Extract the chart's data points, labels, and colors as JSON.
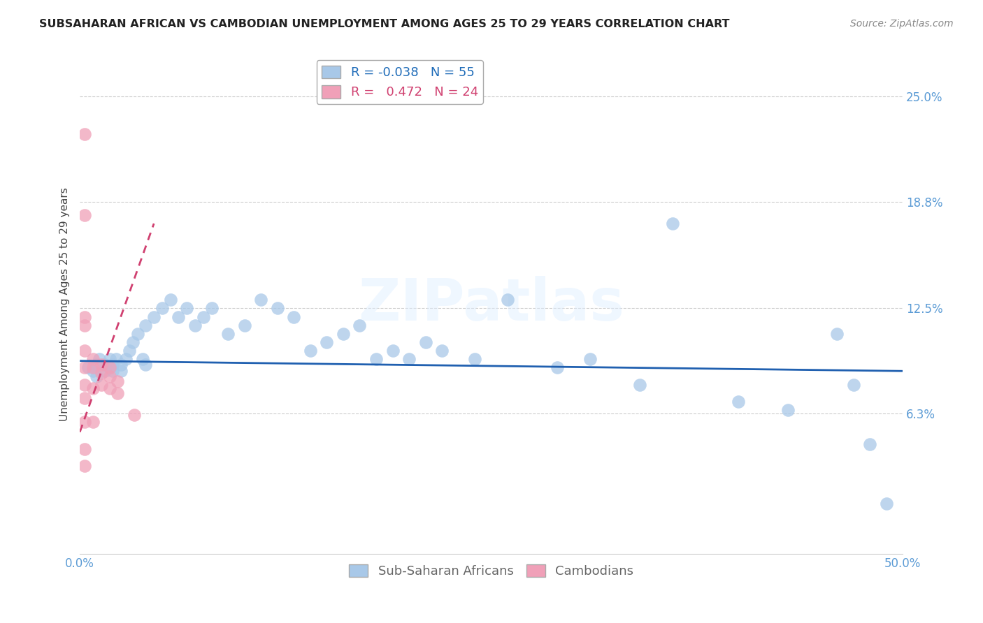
{
  "title": "SUBSAHARAN AFRICAN VS CAMBODIAN UNEMPLOYMENT AMONG AGES 25 TO 29 YEARS CORRELATION CHART",
  "source": "Source: ZipAtlas.com",
  "ylabel": "Unemployment Among Ages 25 to 29 years",
  "xlim": [
    0.0,
    0.5
  ],
  "ylim": [
    -0.02,
    0.275
  ],
  "yticks": [
    0.0,
    0.063,
    0.125,
    0.188,
    0.25
  ],
  "ytick_labels": [
    "",
    "6.3%",
    "12.5%",
    "18.8%",
    "25.0%"
  ],
  "xticks": [
    0.0,
    0.1,
    0.2,
    0.3,
    0.4,
    0.5
  ],
  "xtick_labels": [
    "0.0%",
    "",
    "",
    "",
    "",
    "50.0%"
  ],
  "blue_color": "#A8C8E8",
  "pink_color": "#F0A0B8",
  "trend_blue": "#2060B0",
  "trend_pink": "#D04070",
  "legend_R_blue": "-0.038",
  "legend_N_blue": "55",
  "legend_R_pink": "0.472",
  "legend_N_pink": "24",
  "watermark": "ZIPatlas",
  "blue_scatter_x": [
    0.005,
    0.008,
    0.01,
    0.01,
    0.012,
    0.015,
    0.015,
    0.018,
    0.018,
    0.02,
    0.02,
    0.022,
    0.025,
    0.025,
    0.028,
    0.03,
    0.032,
    0.035,
    0.038,
    0.04,
    0.04,
    0.045,
    0.05,
    0.055,
    0.06,
    0.065,
    0.07,
    0.075,
    0.08,
    0.09,
    0.1,
    0.11,
    0.12,
    0.13,
    0.14,
    0.15,
    0.16,
    0.17,
    0.18,
    0.19,
    0.2,
    0.21,
    0.22,
    0.24,
    0.26,
    0.29,
    0.31,
    0.34,
    0.36,
    0.4,
    0.43,
    0.46,
    0.47,
    0.48,
    0.49
  ],
  "blue_scatter_y": [
    0.09,
    0.088,
    0.085,
    0.092,
    0.095,
    0.088,
    0.092,
    0.09,
    0.095,
    0.088,
    0.092,
    0.095,
    0.088,
    0.092,
    0.095,
    0.1,
    0.105,
    0.11,
    0.095,
    0.092,
    0.115,
    0.12,
    0.125,
    0.13,
    0.12,
    0.125,
    0.115,
    0.12,
    0.125,
    0.11,
    0.115,
    0.13,
    0.125,
    0.12,
    0.1,
    0.105,
    0.11,
    0.115,
    0.095,
    0.1,
    0.095,
    0.105,
    0.1,
    0.095,
    0.13,
    0.09,
    0.095,
    0.08,
    0.175,
    0.07,
    0.065,
    0.11,
    0.08,
    0.045,
    0.01
  ],
  "pink_scatter_x": [
    0.003,
    0.003,
    0.003,
    0.003,
    0.003,
    0.003,
    0.003,
    0.003,
    0.003,
    0.003,
    0.008,
    0.008,
    0.008,
    0.008,
    0.013,
    0.013,
    0.013,
    0.018,
    0.018,
    0.018,
    0.023,
    0.023,
    0.033,
    0.003
  ],
  "pink_scatter_y": [
    0.228,
    0.18,
    0.12,
    0.115,
    0.1,
    0.09,
    0.08,
    0.072,
    0.058,
    0.042,
    0.095,
    0.09,
    0.078,
    0.058,
    0.092,
    0.087,
    0.08,
    0.09,
    0.085,
    0.078,
    0.082,
    0.075,
    0.062,
    0.032
  ],
  "blue_trend_x": [
    0.0,
    0.5
  ],
  "blue_trend_y": [
    0.094,
    0.088
  ],
  "pink_trend_x": [
    0.0,
    0.045
  ],
  "pink_trend_y": [
    0.052,
    0.175
  ]
}
